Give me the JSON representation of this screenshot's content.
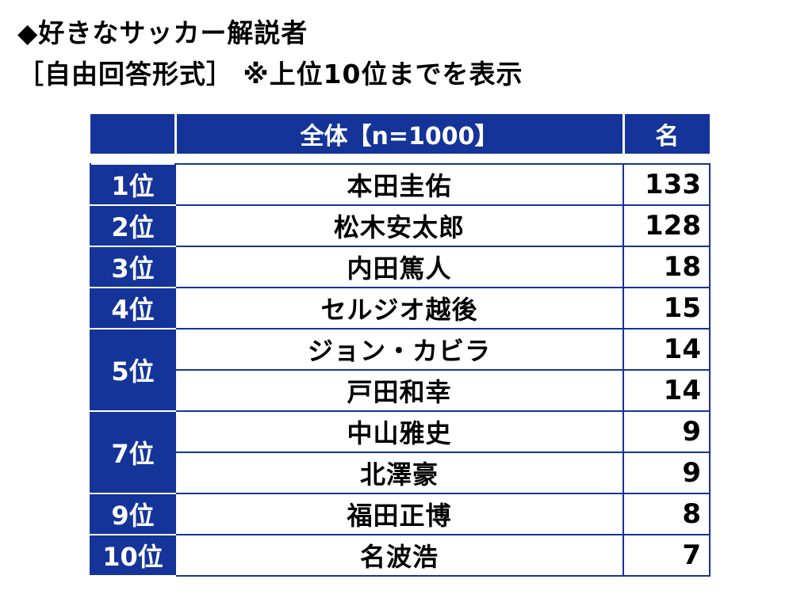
{
  "title": {
    "line1": "◆好きなサッカー解説者",
    "line2": "［自由回答形式］ ※上位10位までを表示"
  },
  "colors": {
    "header_bg": "#14349a",
    "header_text": "#ffffff",
    "border": "#14349a"
  },
  "chart_data": {
    "type": "table",
    "columns": [
      "",
      "全体【n=1000】",
      "名"
    ],
    "rows": [
      {
        "rank": "1位",
        "name": "本田圭佑",
        "count": 133
      },
      {
        "rank": "2位",
        "name": "松木安太郎",
        "count": 128
      },
      {
        "rank": "3位",
        "name": "内田篤人",
        "count": 18
      },
      {
        "rank": "4位",
        "name": "セルジオ越後",
        "count": 15
      },
      {
        "rank": "5位",
        "name": "ジョン・カビラ",
        "count": 14
      },
      {
        "rank": "",
        "name": "戸田和幸",
        "count": 14
      },
      {
        "rank": "7位",
        "name": "中山雅史",
        "count": 9
      },
      {
        "rank": "",
        "name": "北澤豪",
        "count": 9
      },
      {
        "rank": "9位",
        "name": "福田正博",
        "count": 8
      },
      {
        "rank": "10位",
        "name": "名波浩",
        "count": 7
      }
    ]
  }
}
